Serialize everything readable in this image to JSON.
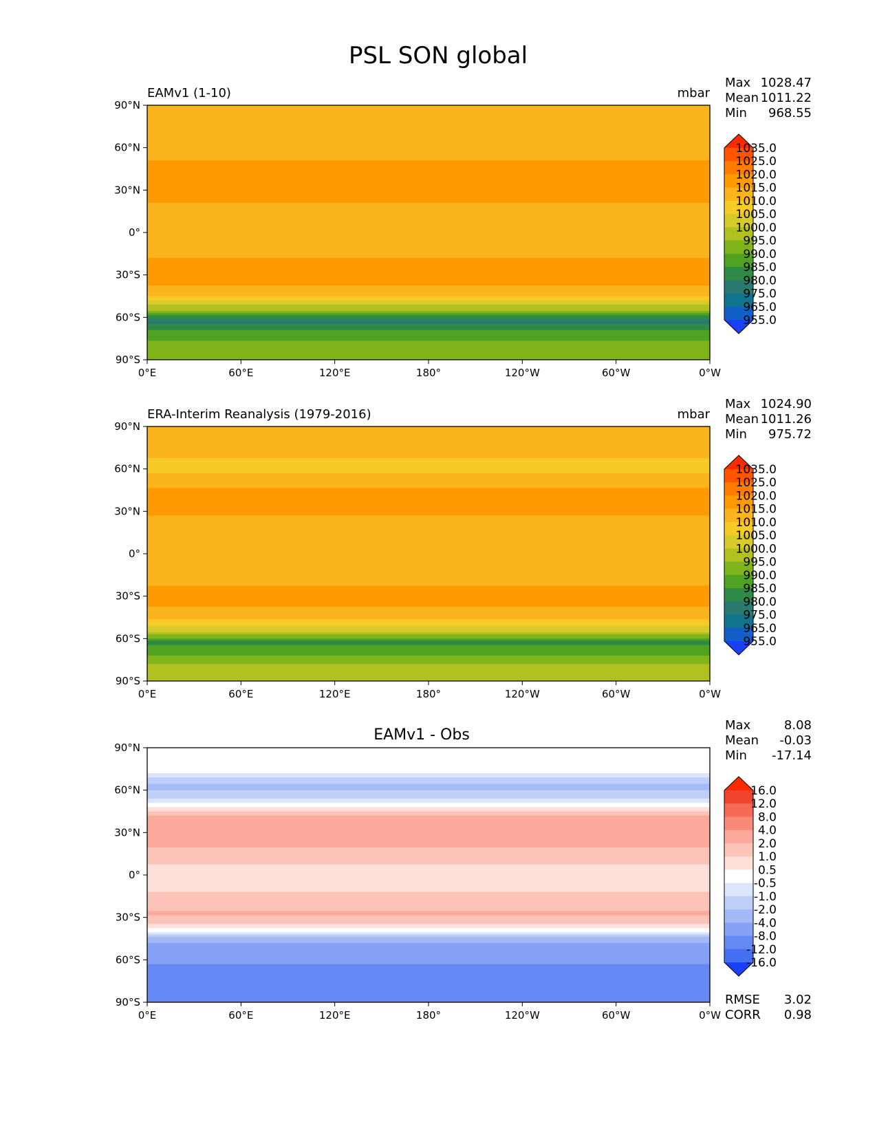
{
  "figure_title": "PSL SON global",
  "chart_data": [
    {
      "type": "heatmap",
      "title": "EAMv1 (1-10)",
      "units": "mbar",
      "stats": {
        "max_label": "Max",
        "max": "1028.47",
        "mean_label": "Mean",
        "mean": "1011.22",
        "min_label": "Min",
        "min": "968.55"
      },
      "colorbar": {
        "levels": [
          "1035.0",
          "1025.0",
          "1020.0",
          "1015.0",
          "1010.0",
          "1005.0",
          "1000.0",
          "995.0",
          "990.0",
          "985.0",
          "980.0",
          "975.0",
          "965.0",
          "955.0"
        ],
        "colors": [
          "#ff2a00",
          "#ff5500",
          "#ff7c00",
          "#ff9a00",
          "#fcb41e",
          "#f6cb26",
          "#d6cb2a",
          "#b1c120",
          "#7fb41a",
          "#50a322",
          "#2e8a46",
          "#2b7a72",
          "#10748f",
          "#1160c8",
          "#1a40ff"
        ]
      },
      "xticks": [
        "0°E",
        "60°E",
        "120°E",
        "180°",
        "120°W",
        "60°W",
        "0°W"
      ],
      "yticks": [
        "90°N",
        "60°N",
        "30°N",
        "0°",
        "30°S",
        "60°S",
        "90°S"
      ],
      "xlim": [
        0,
        360
      ],
      "ylim": [
        -90,
        90
      ],
      "field": [
        {
          "lat": 90,
          "value": 1012
        },
        {
          "lat": 75,
          "value": 1013
        },
        {
          "lat": 60,
          "value": 1010
        },
        {
          "lat": 45,
          "value": 1019
        },
        {
          "lat": 30,
          "value": 1018
        },
        {
          "lat": 15,
          "value": 1013
        },
        {
          "lat": 0,
          "value": 1011
        },
        {
          "lat": -15,
          "value": 1014
        },
        {
          "lat": -30,
          "value": 1020
        },
        {
          "lat": -45,
          "value": 1010
        },
        {
          "lat": -55,
          "value": 995
        },
        {
          "lat": -62,
          "value": 978
        },
        {
          "lat": -70,
          "value": 986
        },
        {
          "lat": -80,
          "value": 992
        },
        {
          "lat": -90,
          "value": 994
        }
      ]
    },
    {
      "type": "heatmap",
      "title": "ERA-Interim Reanalysis (1979-2016)",
      "units": "mbar",
      "stats": {
        "max_label": "Max",
        "max": "1024.90",
        "mean_label": "Mean",
        "mean": "1011.26",
        "min_label": "Min",
        "min": "975.72"
      },
      "colorbar": {
        "levels": [
          "1035.0",
          "1025.0",
          "1020.0",
          "1015.0",
          "1010.0",
          "1005.0",
          "1000.0",
          "995.0",
          "990.0",
          "985.0",
          "980.0",
          "975.0",
          "965.0",
          "955.0"
        ],
        "colors": [
          "#ff2a00",
          "#ff5500",
          "#ff7c00",
          "#ff9a00",
          "#fcb41e",
          "#f6cb26",
          "#d6cb2a",
          "#b1c120",
          "#7fb41a",
          "#50a322",
          "#2e8a46",
          "#2b7a72",
          "#10748f",
          "#1160c8",
          "#1a40ff"
        ]
      },
      "xticks": [
        "0°E",
        "60°E",
        "120°E",
        "180°",
        "120°W",
        "60°W",
        "0°W"
      ],
      "yticks": [
        "90°N",
        "60°N",
        "30°N",
        "0°",
        "30°S",
        "60°S",
        "90°S"
      ],
      "xlim": [
        0,
        360
      ],
      "ylim": [
        -90,
        90
      ],
      "field": [
        {
          "lat": 90,
          "value": 1012
        },
        {
          "lat": 75,
          "value": 1012
        },
        {
          "lat": 60,
          "value": 1008
        },
        {
          "lat": 45,
          "value": 1016
        },
        {
          "lat": 30,
          "value": 1016
        },
        {
          "lat": 15,
          "value": 1011
        },
        {
          "lat": 0,
          "value": 1010
        },
        {
          "lat": -15,
          "value": 1012
        },
        {
          "lat": -30,
          "value": 1018
        },
        {
          "lat": -45,
          "value": 1012
        },
        {
          "lat": -55,
          "value": 1000
        },
        {
          "lat": -62,
          "value": 984
        },
        {
          "lat": -70,
          "value": 988
        },
        {
          "lat": -80,
          "value": 997
        },
        {
          "lat": -90,
          "value": 1000
        }
      ]
    },
    {
      "type": "heatmap",
      "title": "EAMv1 - Obs",
      "units": "",
      "stats": {
        "max_label": "Max",
        "max": "8.08",
        "mean_label": "Mean",
        "mean": "-0.03",
        "min_label": "Min",
        "min": "-17.14"
      },
      "colorbar": {
        "levels": [
          "16.0",
          "12.0",
          "8.0",
          "4.0",
          "2.0",
          "1.0",
          "0.5",
          "-0.5",
          "-1.0",
          "-2.0",
          "-4.0",
          "-8.0",
          "-12.0",
          "-16.0"
        ],
        "colors": [
          "#ff2a00",
          "#f0442e",
          "#f66a55",
          "#f98a78",
          "#fba99b",
          "#fcc4b8",
          "#fde0da",
          "#ffffff",
          "#dde5fb",
          "#c0cffa",
          "#a3b9f8",
          "#86a2f6",
          "#6688f4",
          "#4670f2",
          "#1a40ff"
        ]
      },
      "xticks": [
        "0°E",
        "60°E",
        "120°E",
        "180°",
        "120°W",
        "60°W",
        "0°W"
      ],
      "yticks": [
        "90°N",
        "60°N",
        "30°N",
        "0°",
        "30°S",
        "60°S",
        "90°S"
      ],
      "xlim": [
        0,
        360
      ],
      "ylim": [
        -90,
        90
      ],
      "field": [
        {
          "lat": 90,
          "value": -0.3
        },
        {
          "lat": 75,
          "value": 0.3
        },
        {
          "lat": 62,
          "value": -2.5
        },
        {
          "lat": 50,
          "value": -0.2
        },
        {
          "lat": 38,
          "value": 3.0
        },
        {
          "lat": 25,
          "value": 2.5
        },
        {
          "lat": 12,
          "value": 1.2
        },
        {
          "lat": 0,
          "value": 0.6
        },
        {
          "lat": -15,
          "value": 1.1
        },
        {
          "lat": -28,
          "value": 2.2
        },
        {
          "lat": -40,
          "value": 0.0
        },
        {
          "lat": -50,
          "value": -5.0
        },
        {
          "lat": -60,
          "value": -7.0
        },
        {
          "lat": -72,
          "value": -12.0
        },
        {
          "lat": -90,
          "value": -10.0
        }
      ],
      "rmse_label": "RMSE",
      "rmse": "3.02",
      "corr_label": "CORR",
      "corr": "0.98"
    }
  ]
}
